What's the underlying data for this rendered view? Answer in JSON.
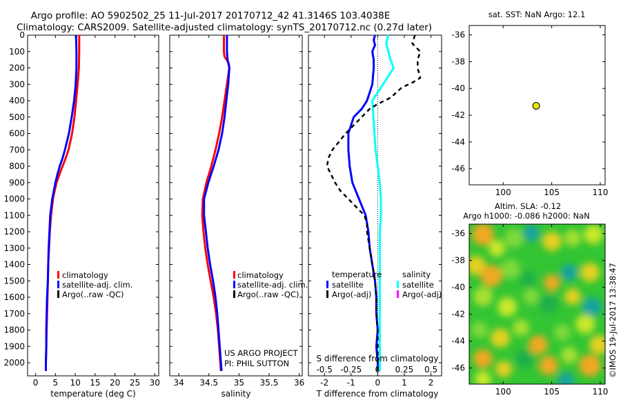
{
  "title_line1": "Argo profile: AO 5902502_25 11-Jul-2017 20170712_42 41.3146S 103.4038E",
  "title_line2": "Climatology: CARS2009. Satellite-adjusted climatology: synTS_20170712.nc (0.27d later)",
  "colors": {
    "climatology": "#ff0000",
    "satellite": "#0000ff",
    "argo": "#000000",
    "satellite_salinity": "#00ffff",
    "argo_salinity": "#ff00ff",
    "marker": "#e6e600",
    "zero_line": "#000000"
  },
  "chart_data": [
    {
      "type": "line",
      "id": "temperature",
      "xlabel": "temperature (deg C)",
      "xlim": [
        -2,
        31
      ],
      "xticks": [
        0,
        5,
        10,
        15,
        20,
        25,
        30
      ],
      "ylim": [
        2080,
        0
      ],
      "yticks": [
        0,
        100,
        200,
        300,
        400,
        500,
        600,
        700,
        800,
        900,
        1000,
        1100,
        1200,
        1300,
        1400,
        1500,
        1600,
        1700,
        1800,
        1900,
        2000
      ],
      "legend": [
        "climatology",
        "satellite-adj. clim.",
        "Argo(..raw -QC)"
      ],
      "series": [
        {
          "name": "climatology",
          "color": "red",
          "depth": [
            0,
            100,
            200,
            300,
            400,
            500,
            600,
            700,
            750,
            800,
            850,
            900,
            950,
            1000,
            1100,
            1200,
            1300,
            1400,
            1500,
            1600,
            1700,
            1800,
            1900,
            2000,
            2050
          ],
          "values": [
            11.0,
            11.0,
            10.9,
            10.6,
            10.2,
            9.8,
            9.2,
            8.3,
            7.6,
            6.8,
            6.0,
            5.3,
            4.8,
            4.4,
            3.9,
            3.6,
            3.4,
            3.2,
            3.1,
            3.0,
            2.9,
            2.8,
            2.7,
            2.6,
            2.6
          ]
        },
        {
          "name": "satellite-adj. clim.",
          "color": "blue",
          "depth": [
            0,
            100,
            200,
            300,
            400,
            500,
            600,
            700,
            750,
            800,
            850,
            900,
            950,
            1000,
            1100,
            1200,
            1300,
            1400,
            1500,
            1600,
            1700,
            1800,
            1900,
            2000,
            2050
          ],
          "values": [
            10.2,
            10.3,
            10.3,
            10.1,
            9.7,
            9.1,
            8.4,
            7.4,
            6.8,
            6.1,
            5.5,
            5.0,
            4.6,
            4.2,
            3.7,
            3.5,
            3.3,
            3.2,
            3.1,
            2.9,
            2.8,
            2.7,
            2.7,
            2.6,
            2.6
          ]
        }
      ]
    },
    {
      "type": "line",
      "id": "salinity",
      "xlabel": "salinity",
      "xlim": [
        33.85,
        36.05
      ],
      "xticks": [
        34,
        34.5,
        35,
        35.5,
        36
      ],
      "xticklabels": [
        "34",
        "34.5",
        "35",
        "35.5",
        "36"
      ],
      "ylim": [
        2080,
        0
      ],
      "legend": [
        "climatology",
        "satellite-adj. clim.",
        "Argo(..raw -QC)"
      ],
      "annotation": [
        "US ARGO PROJECT",
        "PI: PHIL SUTTON"
      ],
      "series": [
        {
          "name": "climatology",
          "color": "red",
          "depth": [
            0,
            100,
            130,
            170,
            200,
            300,
            400,
            500,
            600,
            700,
            800,
            900,
            1000,
            1100,
            1200,
            1300,
            1400,
            1500,
            1600,
            1700,
            1800,
            1900,
            2000,
            2050
          ],
          "values": [
            34.75,
            34.75,
            34.76,
            34.83,
            34.84,
            34.8,
            34.76,
            34.72,
            34.67,
            34.61,
            34.54,
            34.46,
            34.4,
            34.39,
            34.41,
            34.44,
            34.48,
            34.53,
            34.58,
            34.62,
            34.65,
            34.67,
            34.69,
            34.7
          ]
        },
        {
          "name": "satellite-adj. clim.",
          "color": "blue",
          "depth": [
            0,
            100,
            150,
            200,
            300,
            400,
            500,
            600,
            700,
            800,
            900,
            1000,
            1100,
            1200,
            1300,
            1400,
            1500,
            1600,
            1700,
            1800,
            1900,
            2000,
            2050
          ],
          "values": [
            34.8,
            34.8,
            34.81,
            34.84,
            34.82,
            34.79,
            34.76,
            34.72,
            34.66,
            34.58,
            34.49,
            34.42,
            34.42,
            34.45,
            34.48,
            34.52,
            34.57,
            34.61,
            34.64,
            34.66,
            34.68,
            34.7,
            34.71
          ]
        }
      ]
    },
    {
      "type": "line",
      "id": "differences",
      "xlabel": "T difference from climatology",
      "xlabel_top": "S difference from climatology",
      "xlim": [
        -2.6,
        2.4
      ],
      "xticks": [
        -2,
        -1,
        0,
        1,
        2
      ],
      "s_xticks": [
        -0.5,
        -0.25,
        0,
        0.25,
        0.5
      ],
      "s_xticklabels": [
        "-0.5",
        "-0.25",
        "0",
        "0.25",
        "0.5"
      ],
      "ylim": [
        2080,
        0
      ],
      "legend_temperature": {
        "heading": "temperature",
        "items": [
          "satellite",
          "Argo(-adj)"
        ]
      },
      "legend_salinity": {
        "heading": "salinity",
        "items": [
          "satellite",
          "Argo(-adj)"
        ]
      },
      "series": [
        {
          "name": "satellite",
          "quantity": "temperature",
          "color": "blue",
          "depth": [
            0,
            30,
            60,
            100,
            150,
            200,
            300,
            400,
            450,
            500,
            600,
            700,
            800,
            900,
            1000,
            1100,
            1200,
            1300,
            1400,
            1500,
            1600,
            1700,
            1800,
            1900,
            2000,
            2050
          ],
          "values": [
            -0.1,
            -0.15,
            -0.1,
            -0.2,
            -0.15,
            -0.15,
            -0.2,
            -0.4,
            -0.6,
            -0.9,
            -1.1,
            -1.1,
            -1.05,
            -0.95,
            -0.7,
            -0.45,
            -0.35,
            -0.3,
            -0.2,
            -0.1,
            -0.05,
            -0.05,
            0.0,
            -0.05,
            0.0,
            0.0
          ]
        },
        {
          "name": "satellite",
          "quantity": "salinity",
          "color": "cyan",
          "depth": [
            0,
            50,
            100,
            150,
            200,
            300,
            400,
            500,
            600,
            700,
            800,
            900,
            1000,
            1100,
            1200,
            1300,
            1400,
            1500,
            1600,
            1700,
            1800,
            1900,
            2000,
            2050
          ],
          "values": [
            0.1,
            0.08,
            0.1,
            0.12,
            0.15,
            0.05,
            -0.05,
            -0.04,
            -0.03,
            -0.02,
            0.0,
            0.02,
            0.03,
            0.03,
            0.02,
            0.02,
            0.02,
            0.02,
            0.02,
            0.02,
            0.02,
            0.02,
            0.02,
            0.02
          ]
        },
        {
          "name": "Argo(-adj)",
          "quantity": "temperature",
          "color": "black",
          "dashed": true,
          "depth": [
            0,
            50,
            100,
            150,
            200,
            260,
            290,
            320,
            380,
            420,
            450,
            500,
            550,
            600,
            650,
            700,
            750,
            800,
            850,
            900,
            950,
            1000,
            1050,
            1100,
            1150,
            1200,
            1300,
            1400,
            1500,
            1600,
            1700,
            1800,
            1900,
            2000,
            2050
          ],
          "values": [
            1.4,
            1.3,
            1.6,
            1.5,
            1.5,
            1.6,
            1.3,
            0.9,
            0.5,
            0.0,
            -0.3,
            -0.6,
            -0.9,
            -1.2,
            -1.45,
            -1.7,
            -1.85,
            -1.9,
            -1.75,
            -1.6,
            -1.4,
            -1.1,
            -0.8,
            -0.5,
            -0.4,
            -0.4,
            -0.3,
            -0.2,
            -0.1,
            -0.05,
            -0.05,
            0.0,
            0.0,
            0.0,
            0.0
          ]
        }
      ]
    }
  ],
  "sst_panel": {
    "title": "sat. SST: NaN Argo: 12.1",
    "xticks": [
      "100",
      "105",
      "110"
    ],
    "yticks": [
      "-36",
      "-38",
      "-40",
      "-42",
      "-44",
      "-46"
    ],
    "xlim": [
      96.5,
      110.5
    ],
    "ylim": [
      -47.2,
      -35.3
    ],
    "marker": {
      "lon": 103.4,
      "lat": -41.3
    }
  },
  "sla_panel": {
    "title_line1": "Altim. SLA: -0.12",
    "title_line2": "Argo h1000: -0.086 h2000: NaN",
    "xticks": [
      "100",
      "105",
      "110"
    ],
    "yticks": [
      "-36",
      "-38",
      "-40",
      "-42",
      "-44",
      "-46"
    ],
    "xlim": [
      96.5,
      110.5
    ],
    "ylim": [
      -47.2,
      -35.3
    ],
    "credit": "©IMOS 19-Jul-2017 13:38:47"
  }
}
